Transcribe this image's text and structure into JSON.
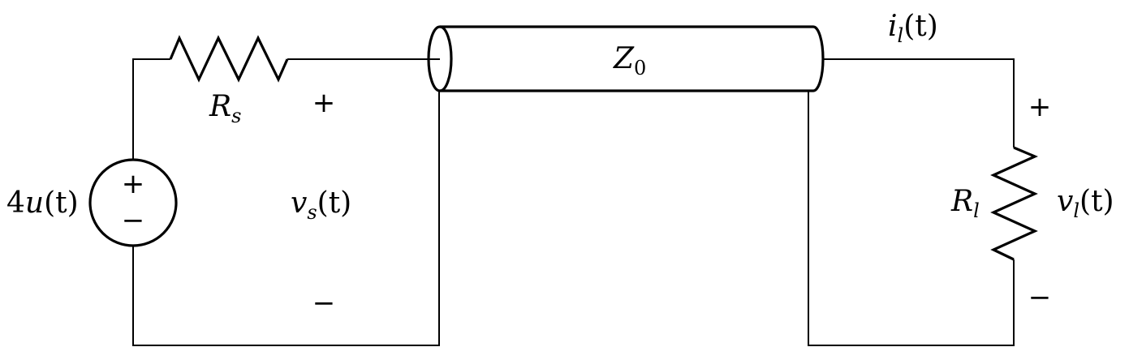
{
  "source": {
    "label_coef": "4",
    "label_func": "u",
    "label_arg": "(t)",
    "plus": "+",
    "minus": "−"
  },
  "source_resistor": {
    "label_main": "R",
    "label_sub": "s"
  },
  "input_voltage": {
    "label_main": "v",
    "label_sub": "s",
    "label_arg": "(t)",
    "plus": "+",
    "minus": "−"
  },
  "transmission_line": {
    "label_main": "Z",
    "label_sub": "0"
  },
  "load_current": {
    "label_main": "i",
    "label_sub": "l",
    "label_arg": "(t)"
  },
  "load_resistor": {
    "label_main": "R",
    "label_sub": "l"
  },
  "load_voltage": {
    "label_main": "v",
    "label_sub": "l",
    "label_arg": "(t)",
    "plus": "+",
    "minus": "−"
  }
}
